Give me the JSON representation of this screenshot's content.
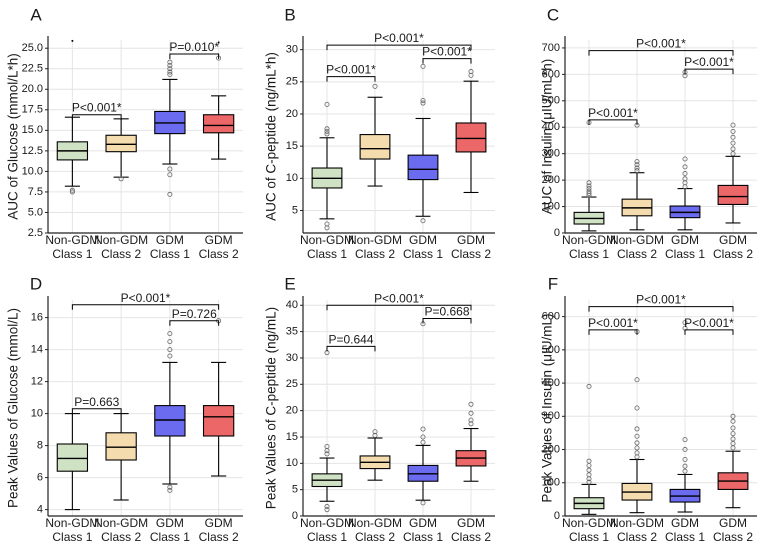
{
  "figure": {
    "colors": {
      "non_gdm_class1": "#cfe3c4",
      "non_gdm_class2": "#f5dcae",
      "gdm_class1": "#6b6bf0",
      "gdm_class2": "#ec6868",
      "axis": "#222222",
      "grid": "#e4e4e4"
    }
  },
  "chart_data": [
    {
      "panel": "A",
      "type": "box",
      "ylabel": "AUC of Glucose (mmol/L*h)",
      "ylim": [
        2.5,
        26.0
      ],
      "yticks": [
        "2.5",
        "5.0",
        "7.5",
        "10.0",
        "12.5",
        "15.0",
        "17.5",
        "20.0",
        "22.5",
        "25.0"
      ],
      "yticks_values": [
        2.5,
        5,
        7.5,
        10,
        12.5,
        15,
        17.5,
        20,
        22.5,
        25
      ],
      "categories": [
        [
          "Non-GDM",
          "Class 1"
        ],
        [
          "Non-GDM",
          "Class 2"
        ],
        [
          "GDM",
          "Class 1"
        ],
        [
          "GDM",
          "Class 2"
        ]
      ],
      "boxes": [
        {
          "whislo": 8.2,
          "q1": 11.4,
          "med": 12.5,
          "q3": 13.6,
          "whishi": 16.6,
          "fliers": [
            7.5,
            7.7
          ]
        },
        {
          "whislo": 9.3,
          "q1": 12.4,
          "med": 13.3,
          "q3": 14.4,
          "whishi": 16.4,
          "fliers": [
            9.1
          ]
        },
        {
          "whislo": 10.9,
          "q1": 14.6,
          "med": 15.9,
          "q3": 17.3,
          "whishi": 21.2,
          "fliers": [
            7.2,
            9.6,
            10.3,
            21.8,
            22.1,
            22.5,
            22.9,
            23.3
          ]
        },
        {
          "whislo": 11.5,
          "q1": 14.7,
          "med": 15.6,
          "q3": 16.9,
          "whishi": 19.2,
          "fliers": [
            23.8
          ]
        }
      ],
      "stray_dots": [
        {
          "x": 1,
          "y": 25.9
        },
        {
          "x": 4,
          "y": 25.7
        }
      ],
      "annotations": [
        {
          "from": 1,
          "to": 2,
          "y": 16.9,
          "label": "P<0.001*"
        },
        {
          "from": 3,
          "to": 4,
          "y": 24.3,
          "label": "P=0.010*"
        }
      ]
    },
    {
      "panel": "B",
      "type": "box",
      "ylabel": "AUC of C-peptide (ng/mL*h)",
      "ylim": [
        1.5,
        31.5
      ],
      "yticks": [
        "5",
        "10",
        "15",
        "20",
        "25",
        "30"
      ],
      "yticks_values": [
        5,
        10,
        15,
        20,
        25,
        30
      ],
      "categories": [
        [
          "Non-GDM",
          "Class 1"
        ],
        [
          "Non-GDM",
          "Class 2"
        ],
        [
          "GDM",
          "Class 1"
        ],
        [
          "GDM",
          "Class 2"
        ]
      ],
      "boxes": [
        {
          "whislo": 3.7,
          "q1": 8.5,
          "med": 10.0,
          "q3": 11.6,
          "whishi": 16.3,
          "fliers": [
            2.3,
            2.9,
            16.9,
            17.3,
            17.7,
            21.5
          ]
        },
        {
          "whislo": 8.8,
          "q1": 13.0,
          "med": 14.6,
          "q3": 16.8,
          "whishi": 22.6,
          "fliers": [
            24.3
          ]
        },
        {
          "whislo": 4.1,
          "q1": 9.8,
          "med": 11.4,
          "q3": 13.6,
          "whishi": 19.3,
          "fliers": [
            3.4,
            21.7,
            22.1,
            27.4
          ]
        },
        {
          "whislo": 7.8,
          "q1": 14.1,
          "med": 16.2,
          "q3": 18.6,
          "whishi": 25.1,
          "fliers": [
            26.0,
            26.6
          ]
        }
      ],
      "annotations": [
        {
          "from": 1,
          "to": 2,
          "y": 25.8,
          "label": "P<0.001*"
        },
        {
          "from": 3,
          "to": 4,
          "y": 28.6,
          "label": "P<0.001*"
        },
        {
          "from": 1,
          "to": 4,
          "y": 30.7,
          "label": "P<0.001*"
        }
      ]
    },
    {
      "panel": "C",
      "type": "box",
      "ylabel": "AUC of Insulin (μIU/mL*h)",
      "ylim": [
        0,
        730
      ],
      "yticks": [
        "0",
        "100",
        "200",
        "300",
        "400",
        "500",
        "600",
        "700"
      ],
      "yticks_values": [
        0,
        100,
        200,
        300,
        400,
        500,
        600,
        700
      ],
      "categories": [
        [
          "Non-GDM",
          "Class 1"
        ],
        [
          "Non-GDM",
          "Class 2"
        ],
        [
          "GDM",
          "Class 1"
        ],
        [
          "GDM",
          "Class 2"
        ]
      ],
      "boxes": [
        {
          "whislo": 8,
          "q1": 34,
          "med": 55,
          "q3": 78,
          "whishi": 136,
          "fliers": [
            142,
            150,
            158,
            168,
            178,
            190,
            418
          ]
        },
        {
          "whislo": 12,
          "q1": 65,
          "med": 95,
          "q3": 128,
          "whishi": 228,
          "fliers": [
            236,
            246,
            258,
            270,
            408
          ]
        },
        {
          "whislo": 12,
          "q1": 58,
          "med": 78,
          "q3": 102,
          "whishi": 168,
          "fliers": [
            175,
            190,
            205,
            225,
            250,
            280,
            595,
            608
          ]
        },
        {
          "whislo": 38,
          "q1": 108,
          "med": 138,
          "q3": 180,
          "whishi": 290,
          "fliers": [
            300,
            318,
            340,
            362,
            384,
            408
          ]
        }
      ],
      "annotations": [
        {
          "from": 1,
          "to": 2,
          "y": 428,
          "label": "P<0.001*"
        },
        {
          "from": 3,
          "to": 4,
          "y": 620,
          "label": "P<0.001*"
        },
        {
          "from": 1,
          "to": 4,
          "y": 690,
          "label": "P<0.001*"
        }
      ]
    },
    {
      "panel": "D",
      "type": "box",
      "ylabel": "Peak Values of Glucose (mmol/L)",
      "ylim": [
        3.6,
        17.1
      ],
      "yticks": [
        "4",
        "6",
        "8",
        "10",
        "12",
        "14",
        "16"
      ],
      "yticks_values": [
        4,
        6,
        8,
        10,
        12,
        14,
        16
      ],
      "categories": [
        [
          "Non-GDM",
          "Class 1"
        ],
        [
          "Non-GDM",
          "Class 2"
        ],
        [
          "GDM",
          "Class 1"
        ],
        [
          "GDM",
          "Class 2"
        ]
      ],
      "boxes": [
        {
          "whislo": 4.0,
          "q1": 6.4,
          "med": 7.2,
          "q3": 8.1,
          "whishi": 10.0,
          "fliers": []
        },
        {
          "whislo": 4.6,
          "q1": 7.1,
          "med": 7.9,
          "q3": 8.8,
          "whishi": 10.0,
          "fliers": []
        },
        {
          "whislo": 5.6,
          "q1": 8.6,
          "med": 9.6,
          "q3": 10.5,
          "whishi": 13.2,
          "fliers": [
            5.2,
            5.4,
            13.6,
            14.0,
            14.5,
            15.0
          ]
        },
        {
          "whislo": 6.1,
          "q1": 8.6,
          "med": 9.8,
          "q3": 10.5,
          "whishi": 13.2,
          "fliers": [
            15.8
          ]
        }
      ],
      "annotations": [
        {
          "from": 1,
          "to": 2,
          "y": 10.3,
          "label": "P=0.663"
        },
        {
          "from": 3,
          "to": 4,
          "y": 15.8,
          "label": "P=0.726"
        },
        {
          "from": 1,
          "to": 4,
          "y": 16.8,
          "label": "P<0.001*"
        }
      ]
    },
    {
      "panel": "E",
      "type": "box",
      "ylabel": "Peak Values of C-peptide (ng/mL)",
      "ylim": [
        0,
        41
      ],
      "yticks": [
        "0",
        "5",
        "10",
        "15",
        "20",
        "25",
        "30",
        "35",
        "40"
      ],
      "yticks_values": [
        0,
        5,
        10,
        15,
        20,
        25,
        30,
        35,
        40
      ],
      "categories": [
        [
          "Non-GDM",
          "Class 1"
        ],
        [
          "Non-GDM",
          "Class 2"
        ],
        [
          "GDM",
          "Class 1"
        ],
        [
          "GDM",
          "Class 2"
        ]
      ],
      "boxes": [
        {
          "whislo": 2.8,
          "q1": 5.6,
          "med": 6.8,
          "q3": 8.0,
          "whishi": 11.0,
          "fliers": [
            1.2,
            1.8,
            11.8,
            12.4,
            13.2,
            31.0
          ]
        },
        {
          "whislo": 6.8,
          "q1": 9.0,
          "med": 10.2,
          "q3": 11.4,
          "whishi": 14.8,
          "fliers": [
            15.3,
            16.0
          ]
        },
        {
          "whislo": 3.0,
          "q1": 6.6,
          "med": 8.0,
          "q3": 9.6,
          "whishi": 13.4,
          "fliers": [
            2.5,
            14.0,
            15.0,
            16.5,
            36.5
          ]
        },
        {
          "whislo": 6.6,
          "q1": 9.5,
          "med": 11.0,
          "q3": 12.4,
          "whishi": 16.6,
          "fliers": [
            17.5,
            18.2,
            19.5,
            21.2
          ]
        }
      ],
      "annotations": [
        {
          "from": 1,
          "to": 2,
          "y": 32.2,
          "label": "P=0.644"
        },
        {
          "from": 3,
          "to": 4,
          "y": 37.5,
          "label": "P=0.668"
        },
        {
          "from": 1,
          "to": 4,
          "y": 40.0,
          "label": "P<0.001*"
        }
      ]
    },
    {
      "panel": "F",
      "type": "box",
      "ylabel": "Peak Values of Insulin (μIU/mL)",
      "ylim": [
        0,
        650
      ],
      "yticks": [
        "0",
        "100",
        "200",
        "300",
        "400",
        "500",
        "600"
      ],
      "yticks_values": [
        0,
        100,
        200,
        300,
        400,
        500,
        600
      ],
      "categories": [
        [
          "Non-GDM",
          "Class 1"
        ],
        [
          "Non-GDM",
          "Class 2"
        ],
        [
          "GDM",
          "Class 1"
        ],
        [
          "GDM",
          "Class 2"
        ]
      ],
      "boxes": [
        {
          "whislo": 5,
          "q1": 22,
          "med": 38,
          "q3": 55,
          "whishi": 95,
          "fliers": [
            102,
            112,
            124,
            138,
            152,
            165,
            390
          ]
        },
        {
          "whislo": 10,
          "q1": 48,
          "med": 72,
          "q3": 98,
          "whishi": 170,
          "fliers": [
            178,
            190,
            205,
            220,
            240,
            262,
            325,
            410,
            555
          ]
        },
        {
          "whislo": 12,
          "q1": 42,
          "med": 60,
          "q3": 80,
          "whishi": 125,
          "fliers": [
            135,
            150,
            170,
            200,
            230,
            565,
            582
          ]
        },
        {
          "whislo": 25,
          "q1": 80,
          "med": 105,
          "q3": 130,
          "whishi": 195,
          "fliers": [
            205,
            218,
            232,
            248,
            265,
            285,
            300
          ]
        }
      ],
      "annotations": [
        {
          "from": 1,
          "to": 2,
          "y": 560,
          "label": "P<0.001*"
        },
        {
          "from": 3,
          "to": 4,
          "y": 560,
          "label": "P<0.001*"
        },
        {
          "from": 1,
          "to": 4,
          "y": 630,
          "label": "P<0.001*"
        }
      ]
    }
  ]
}
